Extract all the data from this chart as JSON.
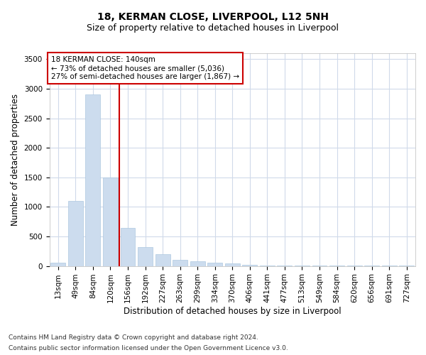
{
  "title": "18, KERMAN CLOSE, LIVERPOOL, L12 5NH",
  "subtitle": "Size of property relative to detached houses in Liverpool",
  "xlabel": "Distribution of detached houses by size in Liverpool",
  "ylabel": "Number of detached properties",
  "categories": [
    "13sqm",
    "49sqm",
    "84sqm",
    "120sqm",
    "156sqm",
    "192sqm",
    "227sqm",
    "263sqm",
    "299sqm",
    "334sqm",
    "370sqm",
    "406sqm",
    "441sqm",
    "477sqm",
    "513sqm",
    "549sqm",
    "584sqm",
    "620sqm",
    "656sqm",
    "691sqm",
    "727sqm"
  ],
  "values": [
    50,
    1100,
    2900,
    1500,
    650,
    325,
    200,
    100,
    75,
    50,
    40,
    25,
    10,
    10,
    5,
    5,
    3,
    3,
    2,
    2,
    2
  ],
  "bar_color": "#ccdcee",
  "bar_edge_color": "#adc8e0",
  "vline_x": 3.5,
  "vline_color": "#cc0000",
  "ylim": [
    0,
    3600
  ],
  "yticks": [
    0,
    500,
    1000,
    1500,
    2000,
    2500,
    3000,
    3500
  ],
  "annotation_text": "18 KERMAN CLOSE: 140sqm\n← 73% of detached houses are smaller (5,036)\n27% of semi-detached houses are larger (1,867) →",
  "annotation_box_color": "#ffffff",
  "annotation_box_edge": "#cc0000",
  "footer_line1": "Contains HM Land Registry data © Crown copyright and database right 2024.",
  "footer_line2": "Contains public sector information licensed under the Open Government Licence v3.0.",
  "background_color": "#ffffff",
  "grid_color": "#d0daea",
  "title_fontsize": 10,
  "subtitle_fontsize": 9,
  "label_fontsize": 8.5,
  "tick_fontsize": 7.5,
  "annot_fontsize": 7.5,
  "footer_fontsize": 6.5
}
